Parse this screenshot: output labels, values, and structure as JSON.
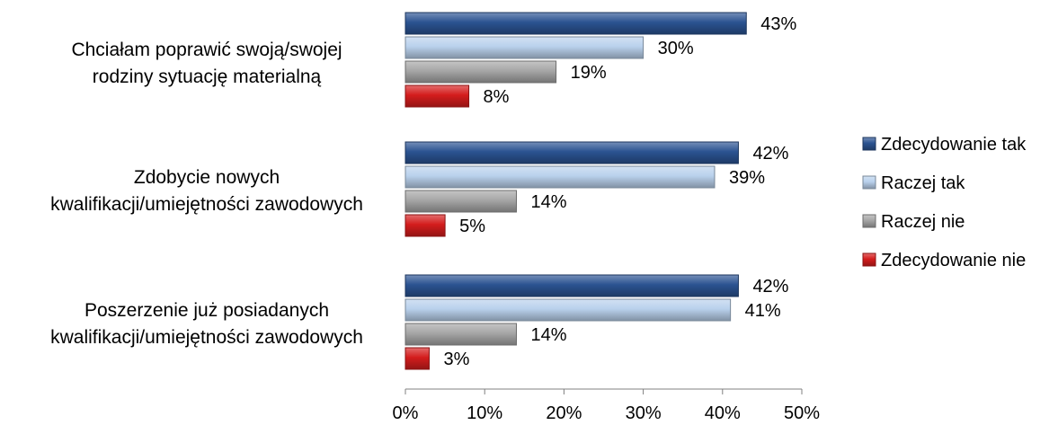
{
  "chart_data": {
    "type": "bar",
    "orientation": "horizontal",
    "categories": [
      [
        "Chciałam poprawić swoją/swojej",
        "rodziny sytuację materialną"
      ],
      [
        "Zdobycie nowych",
        "kwalifikacji/umiejętności zawodowych"
      ],
      [
        "Poszerzenie już posiadanych",
        "kwalifikacji/umiejętności zawodowych"
      ]
    ],
    "series": [
      {
        "name": "Zdecydowanie tak",
        "values": [
          43,
          42,
          42
        ],
        "labels": [
          "43%",
          "42%",
          "42%"
        ],
        "color": "#2b5391"
      },
      {
        "name": "Raczej tak",
        "values": [
          30,
          39,
          41
        ],
        "labels": [
          "30%",
          "39%",
          "41%"
        ],
        "color": "#b9d1ec"
      },
      {
        "name": "Raczej nie",
        "values": [
          19,
          14,
          14
        ],
        "labels": [
          "19%",
          "14%",
          "14%"
        ],
        "color": "#a6a6a6"
      },
      {
        "name": "Zdecydowanie nie",
        "values": [
          8,
          5,
          3
        ],
        "labels": [
          "8%",
          "5%",
          "3%"
        ],
        "color": "#d41d1d"
      }
    ],
    "xlim": [
      0,
      50
    ],
    "xticks": [
      0,
      10,
      20,
      30,
      40,
      50
    ],
    "xtick_labels": [
      "0%",
      "10%",
      "20%",
      "30%",
      "40%",
      "50%"
    ],
    "grid": false,
    "legend_position": "right"
  }
}
